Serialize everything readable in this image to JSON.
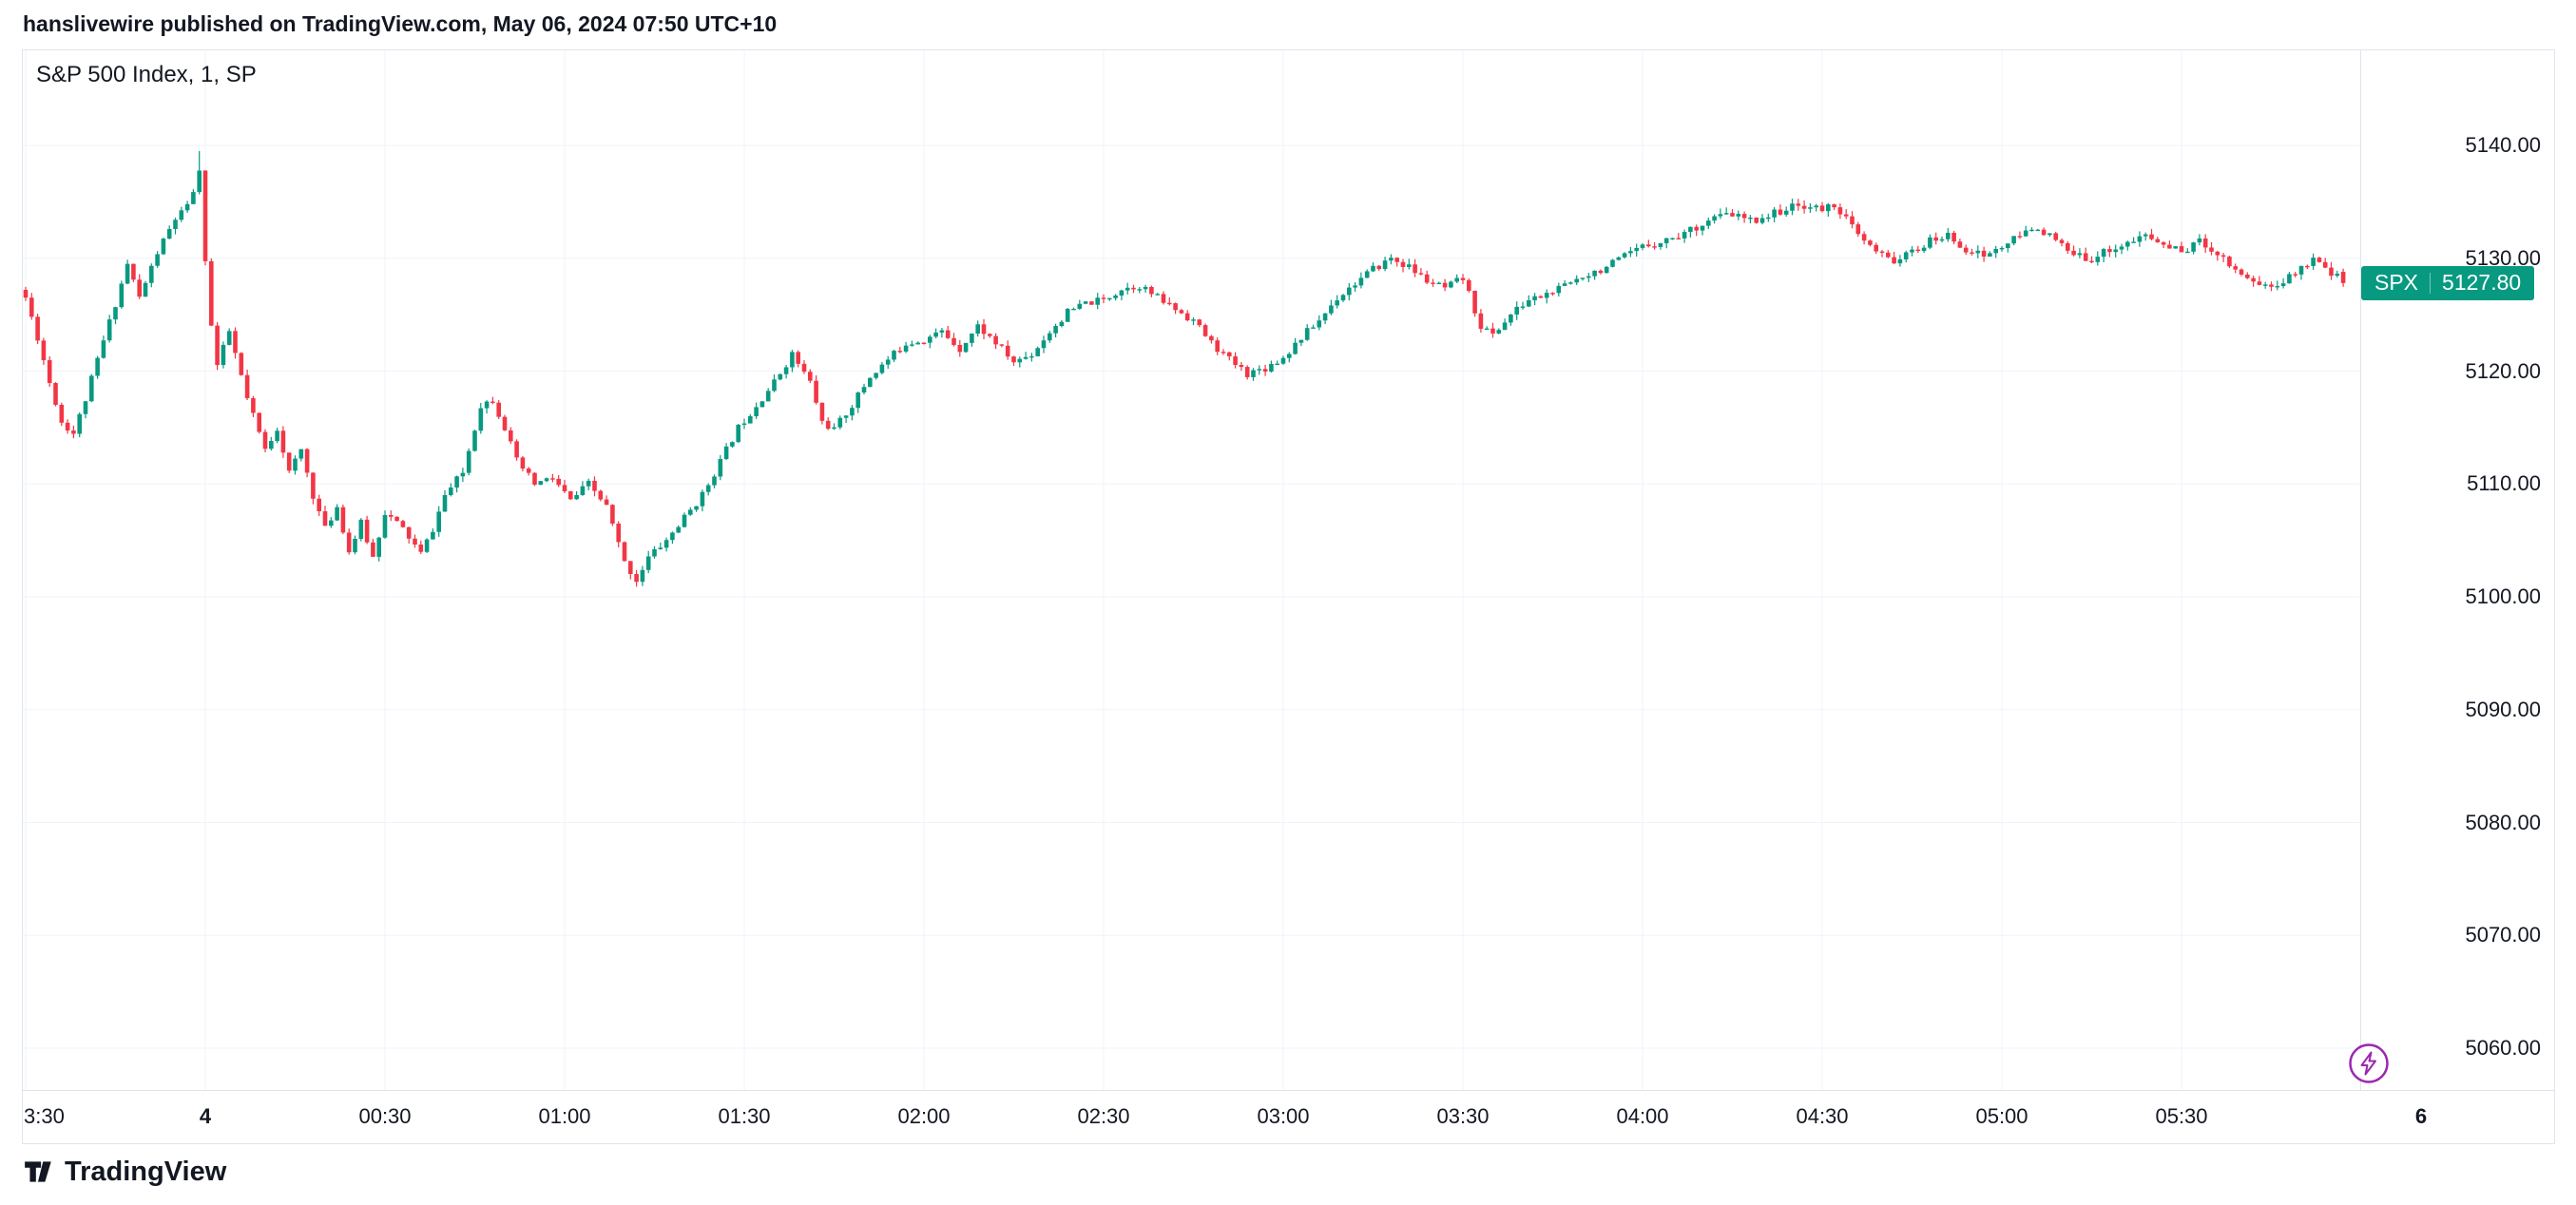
{
  "attribution": {
    "text": "hanslivewire published on TradingView.com, May 06, 2024 07:50 UTC+10"
  },
  "legend": {
    "title": "S&P 500 Index, 1, SP"
  },
  "price_badge": {
    "symbol": "SPX",
    "price": "5127.80"
  },
  "footer": {
    "brand": "TradingView"
  },
  "icons": {
    "flash": "lightning-icon",
    "brand_mark": "tradingview-logo-icon"
  },
  "colors": {
    "up": "#089981",
    "down": "#f23645",
    "grid": "#f0f3fa",
    "border": "#e0e3eb",
    "text": "#131722",
    "badge_bg": "#089981",
    "flash": "#9c27b0"
  },
  "chart_data": {
    "type": "candlestick",
    "title": "S&P 500 Index, 1, SP",
    "symbol": "S&P 500 Index",
    "interval": "1",
    "exchange": "SP",
    "last_price": 5127.8,
    "last_open": 5128.8,
    "grid": true,
    "legend_position": "top-left",
    "y_axis": {
      "ylim": [
        5056,
        5148
      ],
      "ticks": [
        {
          "value": 5140,
          "label": "5140.00"
        },
        {
          "value": 5130,
          "label": "5130.00"
        },
        {
          "value": 5120,
          "label": "5120.00"
        },
        {
          "value": 5110,
          "label": "5110.00"
        },
        {
          "value": 5100,
          "label": "5100.00"
        },
        {
          "value": 5090,
          "label": "5090.00"
        },
        {
          "value": 5080,
          "label": "5080.00"
        },
        {
          "value": 5070,
          "label": "5070.00"
        },
        {
          "value": 5060,
          "label": "5060.00"
        }
      ]
    },
    "x_axis": {
      "description": "t = minutes since left edge (23:30)",
      "ticks": [
        {
          "label": "3:30",
          "t": 0
        },
        {
          "label": "4",
          "t": 30,
          "bold": true
        },
        {
          "label": "00:30",
          "t": 60
        },
        {
          "label": "01:00",
          "t": 90
        },
        {
          "label": "01:30",
          "t": 120
        },
        {
          "label": "02:00",
          "t": 150
        },
        {
          "label": "02:30",
          "t": 180
        },
        {
          "label": "03:00",
          "t": 210
        },
        {
          "label": "03:30",
          "t": 240
        },
        {
          "label": "04:00",
          "t": 270
        },
        {
          "label": "04:30",
          "t": 300
        },
        {
          "label": "05:00",
          "t": 330
        },
        {
          "label": "05:30",
          "t": 360
        },
        {
          "label": "6",
          "t": 400,
          "bold": true
        }
      ]
    },
    "minutes": 388,
    "price_path": [
      [
        0,
        5126.5
      ],
      [
        2,
        5123.0
      ],
      [
        4,
        5119.0
      ],
      [
        6,
        5115.5
      ],
      [
        8,
        5114.5
      ],
      [
        10,
        5117.5
      ],
      [
        12,
        5121.0
      ],
      [
        15,
        5126.0
      ],
      [
        17,
        5129.5
      ],
      [
        19,
        5126.5
      ],
      [
        22,
        5130.5
      ],
      [
        25,
        5133.5
      ],
      [
        27,
        5134.5
      ],
      [
        29,
        5137.5
      ],
      [
        30,
        5130.0
      ],
      [
        31,
        5124.0
      ],
      [
        32,
        5120.5
      ],
      [
        34,
        5123.5
      ],
      [
        37,
        5117.5
      ],
      [
        40,
        5113.0
      ],
      [
        42,
        5115.0
      ],
      [
        44,
        5111.0
      ],
      [
        46,
        5113.0
      ],
      [
        48,
        5109.0
      ],
      [
        50,
        5106.0
      ],
      [
        52,
        5108.0
      ],
      [
        54,
        5104.0
      ],
      [
        56,
        5106.5
      ],
      [
        58,
        5103.5
      ],
      [
        60,
        5107.5
      ],
      [
        63,
        5106.0
      ],
      [
        66,
        5103.8
      ],
      [
        68,
        5106.0
      ],
      [
        70,
        5109.0
      ],
      [
        73,
        5111.0
      ],
      [
        76,
        5117.0
      ],
      [
        78,
        5117.5
      ],
      [
        80,
        5115.0
      ],
      [
        82,
        5112.0
      ],
      [
        85,
        5110.0
      ],
      [
        88,
        5110.5
      ],
      [
        91,
        5108.5
      ],
      [
        94,
        5110.0
      ],
      [
        97,
        5108.0
      ],
      [
        100,
        5103.0
      ],
      [
        102,
        5101.5
      ],
      [
        104,
        5103.5
      ],
      [
        107,
        5105.0
      ],
      [
        110,
        5107.0
      ],
      [
        113,
        5109.0
      ],
      [
        116,
        5112.0
      ],
      [
        119,
        5115.0
      ],
      [
        122,
        5117.0
      ],
      [
        125,
        5119.0
      ],
      [
        128,
        5121.5
      ],
      [
        131,
        5119.0
      ],
      [
        133,
        5115.5
      ],
      [
        135,
        5114.8
      ],
      [
        138,
        5117.0
      ],
      [
        141,
        5119.5
      ],
      [
        144,
        5121.0
      ],
      [
        147,
        5122.5
      ],
      [
        150,
        5122.8
      ],
      [
        153,
        5123.5
      ],
      [
        156,
        5122.0
      ],
      [
        159,
        5124.0
      ],
      [
        162,
        5122.5
      ],
      [
        165,
        5120.8
      ],
      [
        168,
        5121.5
      ],
      [
        171,
        5123.5
      ],
      [
        174,
        5125.2
      ],
      [
        177,
        5126.0
      ],
      [
        180,
        5126.3
      ],
      [
        183,
        5127.3
      ],
      [
        186,
        5127.6
      ],
      [
        189,
        5126.5
      ],
      [
        192,
        5125.5
      ],
      [
        195,
        5124.5
      ],
      [
        198,
        5122.5
      ],
      [
        201,
        5121.0
      ],
      [
        204,
        5119.8
      ],
      [
        207,
        5120.3
      ],
      [
        210,
        5121.2
      ],
      [
        213,
        5123.0
      ],
      [
        216,
        5124.5
      ],
      [
        219,
        5126.5
      ],
      [
        222,
        5127.8
      ],
      [
        225,
        5129.0
      ],
      [
        228,
        5130.0
      ],
      [
        231,
        5129.2
      ],
      [
        234,
        5128.0
      ],
      [
        237,
        5127.3
      ],
      [
        240,
        5128.2
      ],
      [
        243,
        5124.0
      ],
      [
        245,
        5123.2
      ],
      [
        248,
        5125.0
      ],
      [
        251,
        5126.3
      ],
      [
        254,
        5126.8
      ],
      [
        257,
        5127.5
      ],
      [
        260,
        5128.5
      ],
      [
        263,
        5129.0
      ],
      [
        266,
        5129.8
      ],
      [
        270,
        5131.0
      ],
      [
        273,
        5131.5
      ],
      [
        276,
        5132.0
      ],
      [
        279,
        5132.8
      ],
      [
        282,
        5133.6
      ],
      [
        285,
        5133.9
      ],
      [
        288,
        5133.3
      ],
      [
        291,
        5133.8
      ],
      [
        294,
        5134.4
      ],
      [
        297,
        5134.7
      ],
      [
        300,
        5134.3
      ],
      [
        302,
        5134.8
      ],
      [
        304,
        5133.5
      ],
      [
        306,
        5132.0
      ],
      [
        309,
        5130.5
      ],
      [
        312,
        5129.8
      ],
      [
        315,
        5130.5
      ],
      [
        318,
        5131.5
      ],
      [
        321,
        5132.0
      ],
      [
        324,
        5130.8
      ],
      [
        327,
        5130.2
      ],
      [
        330,
        5131.0
      ],
      [
        333,
        5132.0
      ],
      [
        336,
        5132.8
      ],
      [
        339,
        5131.5
      ],
      [
        342,
        5130.2
      ],
      [
        345,
        5130.0
      ],
      [
        348,
        5130.8
      ],
      [
        351,
        5131.3
      ],
      [
        354,
        5132.0
      ],
      [
        357,
        5131.2
      ],
      [
        360,
        5130.6
      ],
      [
        363,
        5131.5
      ],
      [
        366,
        5130.5
      ],
      [
        369,
        5129.0
      ],
      [
        372,
        5128.0
      ],
      [
        375,
        5127.4
      ],
      [
        378,
        5128.3
      ],
      [
        381,
        5129.6
      ],
      [
        383,
        5130.0
      ],
      [
        385,
        5128.8
      ],
      [
        387,
        5127.8
      ]
    ],
    "spikes": [
      {
        "t": 29,
        "high": 5139.5
      },
      {
        "t": 102,
        "low": 5100.9
      }
    ],
    "noise": {
      "seed": 11,
      "close_jitter": 0.35,
      "wick": 0.5
    }
  }
}
